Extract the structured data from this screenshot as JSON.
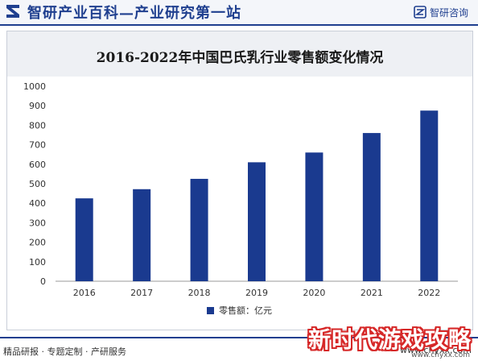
{
  "header": {
    "title": "智研产业百科—产业研究第一站",
    "brand": "智研咨询",
    "logo_icon": "zhiyan-logo-icon",
    "brand_icon": "zhiyan-brand-icon",
    "accent_color": "#1f3f8f"
  },
  "chart_data": {
    "type": "bar",
    "title": "2016-2022年中国巴氏乳行业零售额变化情况",
    "categories": [
      "2016",
      "2017",
      "2018",
      "2019",
      "2020",
      "2021",
      "2022"
    ],
    "series": [
      {
        "name": "零售额：亿元",
        "values": [
          425,
          472,
          525,
          610,
          660,
          760,
          875
        ],
        "color": "#1a3a8f"
      }
    ],
    "xlabel": "",
    "ylabel": "",
    "ylim": [
      0,
      1000
    ],
    "yticks": [
      0,
      100,
      200,
      300,
      400,
      500,
      600,
      700,
      800,
      900,
      1000
    ],
    "grid": false,
    "legend_position": "bottom"
  },
  "footer": {
    "left": "精品研报 · 专题定制 · 产研服务",
    "right": "www.chyxx.com"
  },
  "overlay": {
    "brand": "新时代游戏攻略",
    "url": "www.chyxx.com"
  }
}
